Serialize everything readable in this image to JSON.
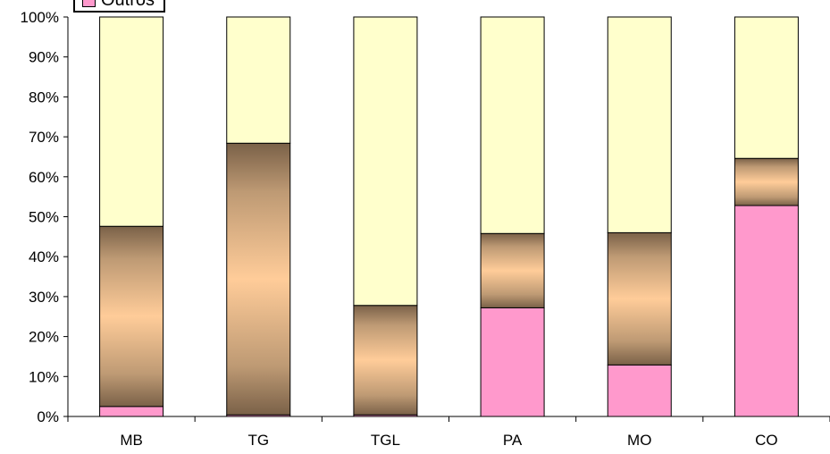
{
  "chart_data": {
    "type": "bar",
    "stacked": "percent",
    "categories": [
      "MB",
      "TG",
      "TGL",
      "PA",
      "MO",
      "CO"
    ],
    "series": [
      {
        "name": "Outros",
        "color": "#FF99CC",
        "values": [
          2.5,
          0.4,
          0.4,
          27.2,
          12.9,
          52.8
        ]
      },
      {
        "name": "",
        "color": "#FFCC99",
        "gradient": [
          "#7A6148",
          "#FFCC99"
        ],
        "values": [
          45.1,
          68.0,
          27.4,
          18.6,
          33.1,
          11.8
        ]
      },
      {
        "name": "",
        "color": "#FFFFCC",
        "values": [
          52.4,
          31.6,
          72.2,
          54.2,
          54.0,
          35.4
        ]
      }
    ],
    "yticks": [
      "0%",
      "10%",
      "20%",
      "30%",
      "40%",
      "50%",
      "60%",
      "70%",
      "80%",
      "90%",
      "100%"
    ],
    "ylim": [
      0,
      100
    ],
    "title": "",
    "xlabel": "",
    "ylabel": "",
    "grid": false,
    "legend": {
      "placement": "top-left",
      "visible_entries": [
        "Outros"
      ]
    }
  }
}
